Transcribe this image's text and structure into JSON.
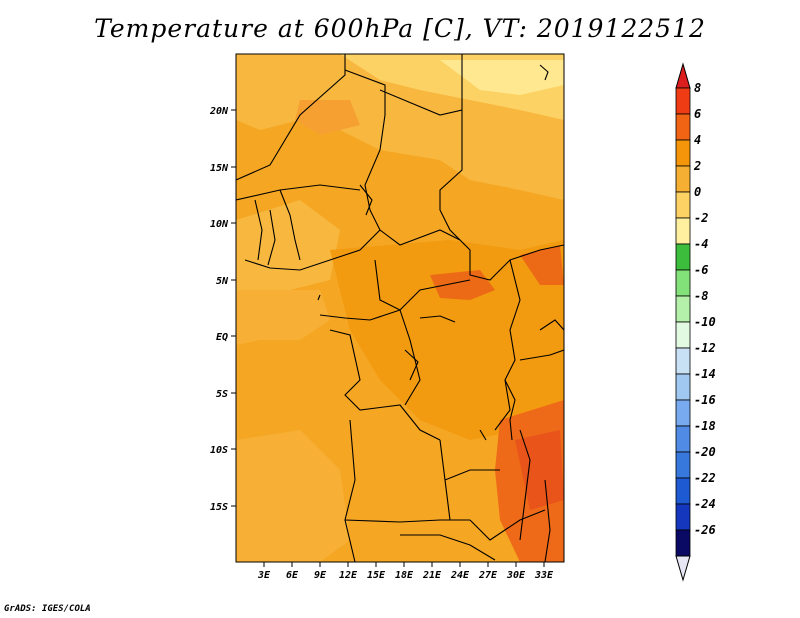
{
  "title": "Temperature at 600hPa [C], VT: 2019122512",
  "credit": "GrADS: IGES/COLA",
  "map": {
    "lat_labels": [
      "20N",
      "15N",
      "10N",
      "5N",
      "EQ",
      "5S",
      "10S",
      "15S"
    ],
    "lon_labels": [
      "3E",
      "6E",
      "9E",
      "12E",
      "15E",
      "18E",
      "21E",
      "24E",
      "27E",
      "30E",
      "33E"
    ]
  },
  "colorbar": {
    "labels": [
      "8",
      "6",
      "4",
      "2",
      "0",
      "-2",
      "-4",
      "-6",
      "-8",
      "-10",
      "-12",
      "-14",
      "-16",
      "-18",
      "-20",
      "-22",
      "-24",
      "-26"
    ],
    "colors": [
      "#dc1e1e",
      "#f03c14",
      "#f06414",
      "#f5960a",
      "#f5af32",
      "#fcd264",
      "#fff0a0",
      "#3cbe3c",
      "#82e178",
      "#b4f0aa",
      "#e1fae1",
      "#c8e1f5",
      "#a0c8f0",
      "#78aaf0",
      "#508ce6",
      "#3778dc",
      "#1e5ad2",
      "#1437be",
      "#0a0a64",
      "#e6e6f5"
    ]
  }
}
